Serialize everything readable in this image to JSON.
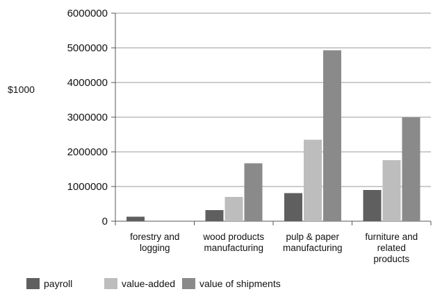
{
  "chart_data": {
    "type": "bar",
    "categories": [
      [
        "forestry and",
        "logging"
      ],
      [
        "wood products",
        "manufacturing"
      ],
      [
        "pulp & paper",
        "manufacturing"
      ],
      [
        "furniture and",
        "related",
        "products"
      ]
    ],
    "series": [
      {
        "name": "payroll",
        "color": "#5f5f5f",
        "values": [
          130000,
          320000,
          810000,
          900000
        ]
      },
      {
        "name": "value-added",
        "color": "#bdbdbd",
        "values": [
          0,
          700000,
          2350000,
          1760000
        ]
      },
      {
        "name": "value of shipments",
        "color": "#8a8a8a",
        "values": [
          0,
          1670000,
          4930000,
          2990000
        ]
      }
    ],
    "ylabel": "$1000",
    "xlabel": "",
    "ylim": [
      0,
      6000000
    ],
    "yticks": [
      "0",
      "1000000",
      "2000000",
      "3000000",
      "4000000",
      "5000000",
      "6000000"
    ],
    "grid": true,
    "legend_position": "bottom-left"
  }
}
